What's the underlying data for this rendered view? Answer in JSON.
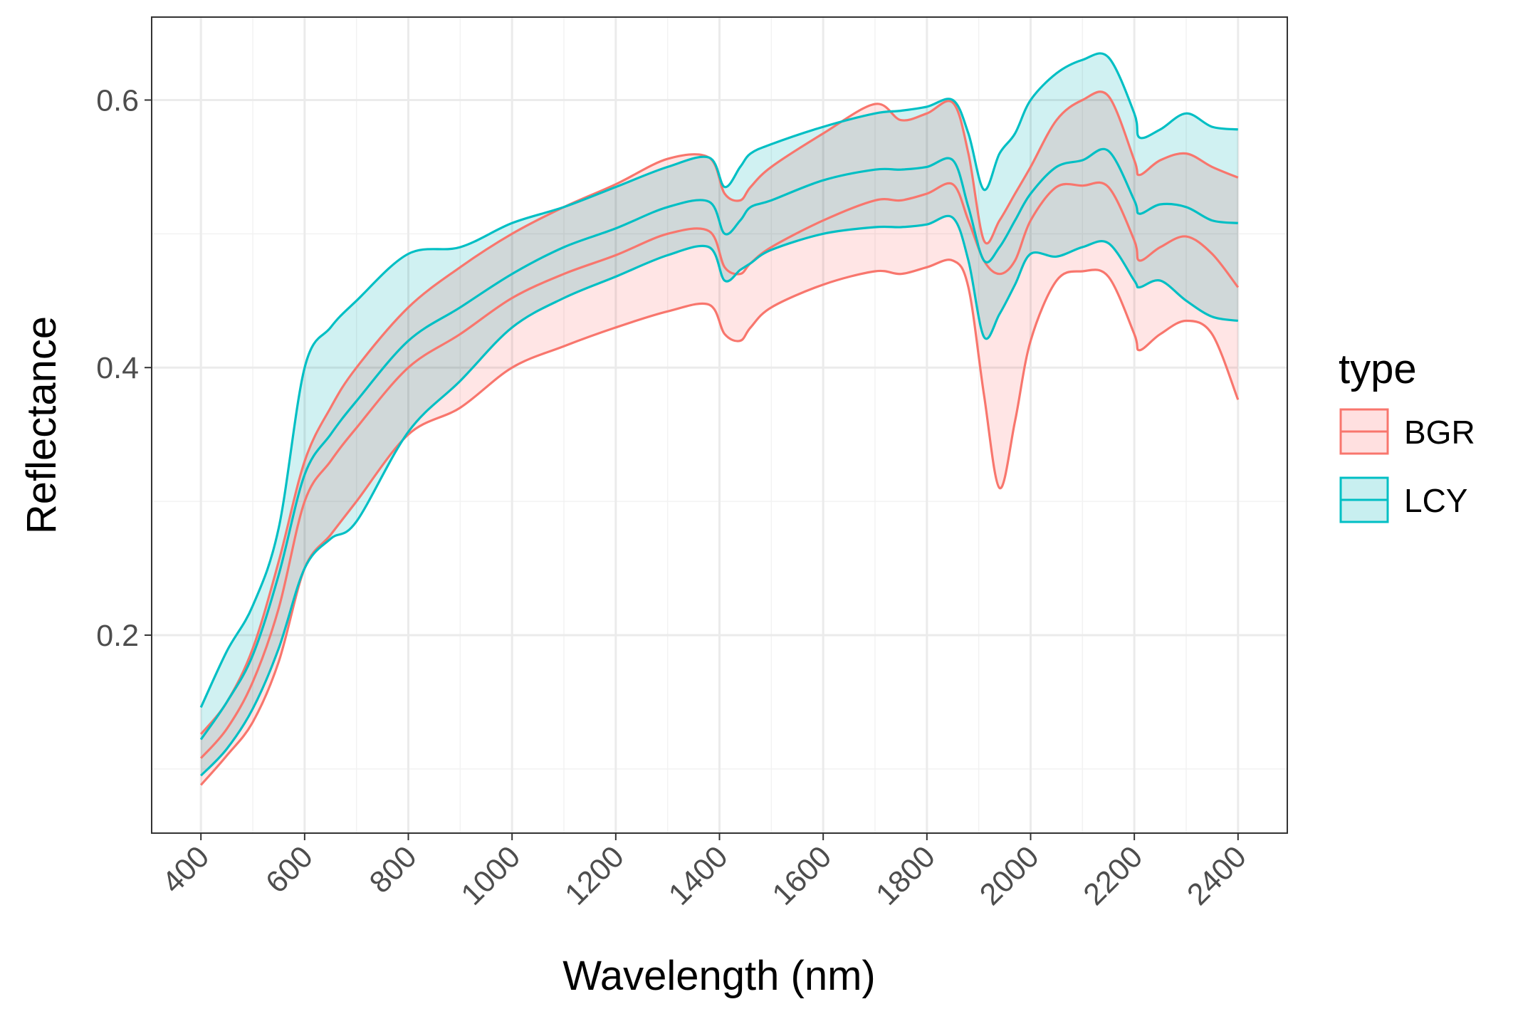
{
  "chart_data": {
    "type": "area",
    "xlabel": "Wavelength (nm)",
    "ylabel": "Reflectance",
    "xlim": [
      305,
      2495
    ],
    "ylim": [
      0.052,
      0.662
    ],
    "x_ticks": [
      "400",
      "600",
      "800",
      "1000",
      "1200",
      "1400",
      "1600",
      "1800",
      "2000",
      "2200",
      "2400"
    ],
    "x_tick_values": [
      400,
      600,
      800,
      1000,
      1200,
      1400,
      1600,
      1800,
      2000,
      2200,
      2400
    ],
    "y_ticks": [
      "0.2",
      "0.4",
      "0.6"
    ],
    "y_tick_values": [
      0.2,
      0.4,
      0.6
    ],
    "grid": true,
    "legend": {
      "title": "type",
      "position": "right",
      "entries": [
        "BGR",
        "LCY"
      ]
    },
    "x": [
      400,
      450,
      500,
      550,
      600,
      650,
      700,
      800,
      900,
      1000,
      1100,
      1200,
      1300,
      1380,
      1410,
      1440,
      1460,
      1500,
      1600,
      1700,
      1750,
      1800,
      1850,
      1880,
      1910,
      1940,
      1970,
      2000,
      2050,
      2100,
      2150,
      2200,
      2210,
      2250,
      2300,
      2350,
      2400
    ],
    "series": [
      {
        "name": "BGR",
        "color": "#F8766D",
        "fill": "#FFE0E0",
        "mean": [
          0.108,
          0.13,
          0.165,
          0.22,
          0.3,
          0.33,
          0.355,
          0.4,
          0.425,
          0.452,
          0.47,
          0.484,
          0.5,
          0.502,
          0.475,
          0.47,
          0.478,
          0.49,
          0.51,
          0.525,
          0.525,
          0.53,
          0.537,
          0.51,
          0.48,
          0.47,
          0.48,
          0.51,
          0.535,
          0.536,
          0.535,
          0.495,
          0.48,
          0.49,
          0.498,
          0.485,
          0.46
        ],
        "lower": [
          0.088,
          0.11,
          0.135,
          0.18,
          0.25,
          0.275,
          0.3,
          0.35,
          0.37,
          0.4,
          0.416,
          0.43,
          0.442,
          0.447,
          0.425,
          0.42,
          0.43,
          0.445,
          0.462,
          0.472,
          0.47,
          0.475,
          0.48,
          0.46,
          0.38,
          0.31,
          0.36,
          0.42,
          0.465,
          0.472,
          0.468,
          0.425,
          0.413,
          0.425,
          0.435,
          0.425,
          0.376
        ],
        "upper": [
          0.126,
          0.15,
          0.19,
          0.255,
          0.33,
          0.37,
          0.4,
          0.445,
          0.475,
          0.5,
          0.52,
          0.537,
          0.556,
          0.557,
          0.53,
          0.525,
          0.535,
          0.55,
          0.575,
          0.597,
          0.585,
          0.59,
          0.598,
          0.56,
          0.495,
          0.51,
          0.53,
          0.55,
          0.585,
          0.6,
          0.603,
          0.555,
          0.544,
          0.555,
          0.56,
          0.55,
          0.542
        ]
      },
      {
        "name": "LCY",
        "color": "#00BFC4",
        "fill": "#C8EFF0",
        "mean": [
          0.122,
          0.15,
          0.185,
          0.245,
          0.32,
          0.35,
          0.375,
          0.42,
          0.445,
          0.47,
          0.49,
          0.504,
          0.52,
          0.524,
          0.5,
          0.51,
          0.52,
          0.525,
          0.54,
          0.548,
          0.548,
          0.55,
          0.555,
          0.52,
          0.48,
          0.49,
          0.51,
          0.53,
          0.55,
          0.555,
          0.562,
          0.525,
          0.515,
          0.522,
          0.52,
          0.51,
          0.508
        ],
        "lower": [
          0.095,
          0.115,
          0.145,
          0.19,
          0.25,
          0.272,
          0.285,
          0.352,
          0.39,
          0.43,
          0.452,
          0.468,
          0.484,
          0.49,
          0.465,
          0.473,
          0.478,
          0.488,
          0.5,
          0.505,
          0.505,
          0.507,
          0.512,
          0.48,
          0.423,
          0.44,
          0.462,
          0.485,
          0.483,
          0.49,
          0.493,
          0.465,
          0.46,
          0.465,
          0.45,
          0.438,
          0.435
        ],
        "upper": [
          0.146,
          0.188,
          0.222,
          0.28,
          0.4,
          0.43,
          0.45,
          0.485,
          0.49,
          0.508,
          0.52,
          0.535,
          0.55,
          0.557,
          0.535,
          0.55,
          0.56,
          0.567,
          0.58,
          0.59,
          0.592,
          0.595,
          0.6,
          0.575,
          0.533,
          0.56,
          0.575,
          0.6,
          0.62,
          0.63,
          0.632,
          0.59,
          0.572,
          0.578,
          0.59,
          0.58,
          0.578
        ]
      }
    ]
  }
}
